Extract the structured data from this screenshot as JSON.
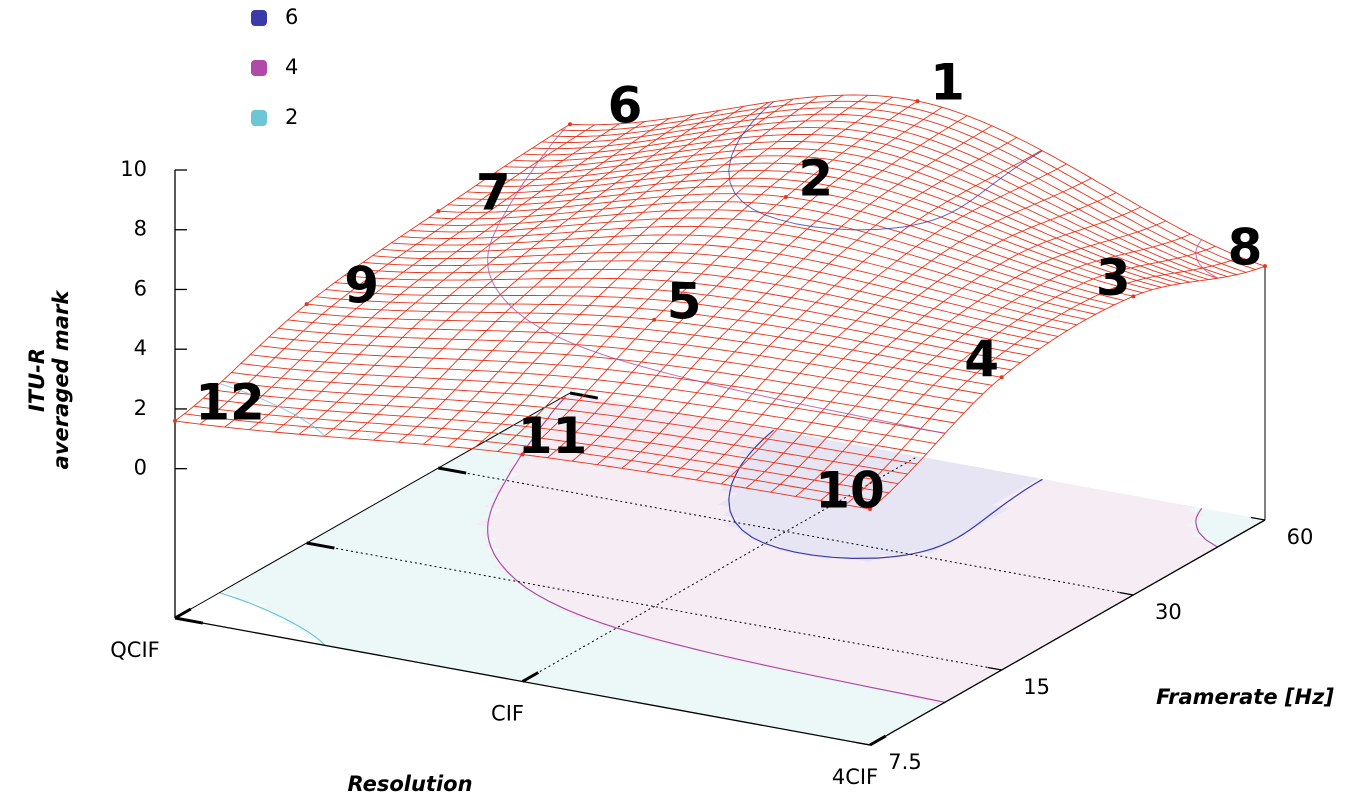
{
  "chart_data": {
    "type": "surface",
    "zlabel": [
      "ITU-R",
      "averaged mark"
    ],
    "xlabel": "Resolution",
    "ylabel": "Framerate [Hz]",
    "xcategories": [
      "QCIF",
      "CIF",
      "4CIF"
    ],
    "yticks": [
      7.5,
      15,
      30,
      60
    ],
    "ylog": true,
    "zlim": [
      -5,
      10
    ],
    "zticks": [
      0,
      2,
      4,
      6,
      8,
      10
    ],
    "z": [
      [
        1.6,
        2.6,
        2.9
      ],
      [
        3.0,
        4.6,
        4.8
      ],
      [
        3.6,
        6.2,
        5.0
      ],
      [
        4.0,
        6.9,
        3.5
      ]
    ],
    "ranks": [
      [
        12,
        11,
        10
      ],
      [
        9,
        5,
        4
      ],
      [
        7,
        2,
        3
      ],
      [
        6,
        1,
        8
      ]
    ],
    "mesh_color": "#e8341c",
    "contours": [
      {
        "level": 6,
        "color": "#3a3aa8",
        "fill": "#e7e5f3"
      },
      {
        "level": 4,
        "color": "#b04aa6",
        "fill": "#f5ecf4"
      },
      {
        "level": 2,
        "color": "#6cc6d6",
        "fill": "#ecf7f8"
      }
    ]
  }
}
